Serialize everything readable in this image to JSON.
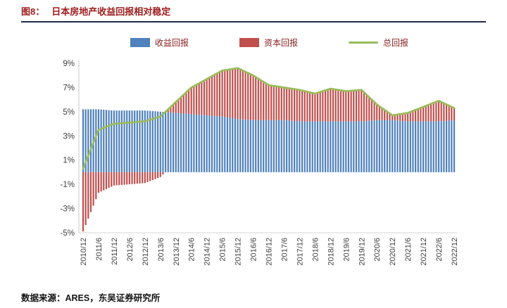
{
  "header": {
    "figure_label": "图8：",
    "title": "日本房地产收益回报相对稳定",
    "accent_text_color": "#9e1b1b",
    "rule_color": "#1c2b4a"
  },
  "legend": {
    "items": [
      {
        "label": "收益回报",
        "color": "#4f81bd",
        "swatch": "bar"
      },
      {
        "label": "资本回报",
        "color": "#c0504d",
        "swatch": "bar"
      },
      {
        "label": "总回报",
        "color": "#9bbb59",
        "swatch": "line"
      }
    ]
  },
  "source": {
    "text": "数据来源：ARES，东吴证券研究所"
  },
  "chart_data": {
    "type": "bar",
    "combo": "stacked-bar-with-line",
    "title": "日本房地产收益回报相对稳定",
    "xlabel": "",
    "ylabel": "",
    "ylim": [
      -5,
      9
    ],
    "grid": false,
    "legend_position": "top",
    "bar_frequency_note": "bars are monthly; values below read at the semiannual axis tick labels, monthly bars linearly interpolated",
    "y_ticks": [
      "9%",
      "7%",
      "5%",
      "3%",
      "1%",
      "-1%",
      "-3%",
      "-5%"
    ],
    "y_tick_values": [
      9,
      7,
      5,
      3,
      1,
      -1,
      -3,
      -5
    ],
    "categories": [
      "2010/12",
      "2011/6",
      "2011/12",
      "2012/6",
      "2012/12",
      "2013/6",
      "2013/12",
      "2014/6",
      "2014/12",
      "2015/6",
      "2015/12",
      "2016/6",
      "2016/12",
      "2017/6",
      "2017/12",
      "2018/6",
      "2018/12",
      "2019/6",
      "2019/12",
      "2020/6",
      "2020/12",
      "2021/6",
      "2021/12",
      "2022/6",
      "2022/12"
    ],
    "series": [
      {
        "name": "收益回报",
        "type": "bar",
        "color": "#4f81bd",
        "values": [
          5.2,
          5.2,
          5.1,
          5.1,
          5.1,
          5.0,
          4.9,
          4.8,
          4.7,
          4.6,
          4.4,
          4.3,
          4.3,
          4.3,
          4.2,
          4.2,
          4.2,
          4.2,
          4.2,
          4.3,
          4.3,
          4.2,
          4.2,
          4.2,
          4.3
        ]
      },
      {
        "name": "资本回报",
        "type": "bar",
        "color": "#c0504d",
        "values": [
          -4.9,
          -1.7,
          -1.1,
          -1.0,
          -0.9,
          -0.4,
          0.9,
          2.2,
          3.0,
          3.8,
          4.2,
          3.7,
          2.9,
          2.7,
          2.6,
          2.3,
          2.7,
          2.5,
          2.6,
          1.3,
          0.4,
          0.7,
          1.2,
          1.7,
          1.0
        ]
      },
      {
        "name": "总回报",
        "type": "line",
        "color": "#9bbb59",
        "values": [
          0.3,
          3.5,
          4.0,
          4.1,
          4.2,
          4.6,
          5.8,
          7.0,
          7.7,
          8.4,
          8.6,
          8.0,
          7.2,
          7.0,
          6.8,
          6.5,
          6.9,
          6.7,
          6.8,
          5.6,
          4.7,
          4.9,
          5.4,
          5.9,
          5.3
        ]
      }
    ]
  }
}
